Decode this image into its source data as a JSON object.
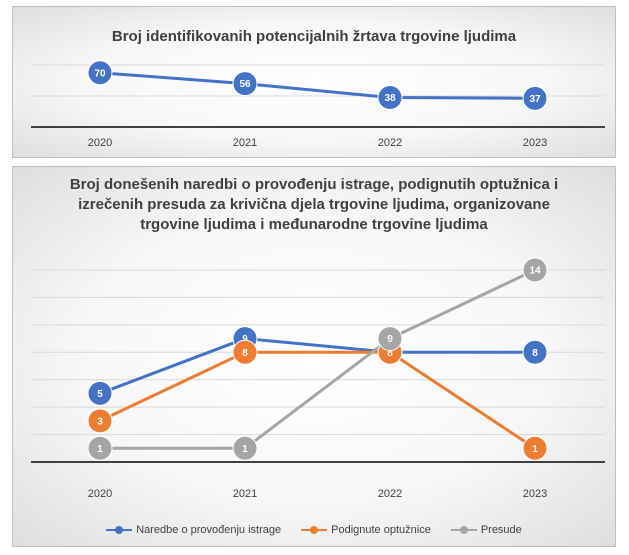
{
  "chart_data": [
    {
      "type": "line",
      "title": "Broj identifikovanih potencijalnih žrtava trgovine ljudima",
      "categories": [
        "2020",
        "2021",
        "2022",
        "2023"
      ],
      "series": [
        {
          "values": [
            70,
            56,
            38,
            37
          ],
          "color": "#4472c4"
        }
      ],
      "ylim": [
        0,
        80
      ],
      "grid": true,
      "legend": "none"
    },
    {
      "type": "line",
      "title_lines": [
        "Broj donešenih naredbi o provođenju istrage, podignutih optužnica i",
        "izrečenih presuda za krivična djela trgovine ljudima, organizovane",
        "trgovine ljudima i međunarodne trgovine ljudima"
      ],
      "categories": [
        "2020",
        "2021",
        "2022",
        "2023"
      ],
      "series": [
        {
          "name": "Naredbe o provođenju istrage",
          "values": [
            5,
            9,
            8,
            8
          ],
          "color": "#4472c4"
        },
        {
          "name": "Podignute optužnice",
          "values": [
            3,
            8,
            8,
            1
          ],
          "color": "#ed7d31"
        },
        {
          "name": "Presude",
          "values": [
            1,
            1,
            9,
            14
          ],
          "color": "#a5a5a5"
        }
      ],
      "ylim": [
        0,
        14
      ],
      "grid": true,
      "legend": "bottom"
    }
  ]
}
